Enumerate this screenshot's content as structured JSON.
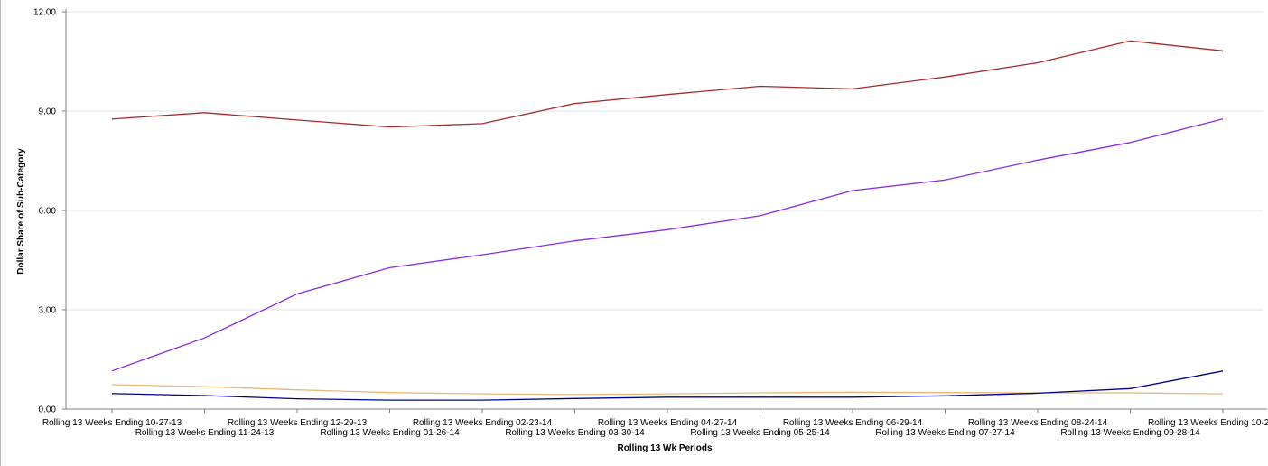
{
  "chart_data": {
    "type": "line",
    "title": "",
    "xlabel": "Rolling 13 Wk Periods",
    "ylabel": "Dollar Share of Sub-Category",
    "ylim": [
      0,
      12
    ],
    "yticks": [
      "0.00",
      "3.00",
      "6.00",
      "9.00",
      "12.00"
    ],
    "grid": "horizontal",
    "legend": "none",
    "categories": [
      "Rolling 13 Weeks Ending 10-27-13",
      "Rolling 13 Weeks Ending 11-24-13",
      "Rolling 13 Weeks Ending 12-29-13",
      "Rolling 13 Weeks Ending 01-26-14",
      "Rolling 13 Weeks Ending 02-23-14",
      "Rolling 13 Weeks Ending 03-30-14",
      "Rolling 13 Weeks Ending 04-27-14",
      "Rolling 13 Weeks Ending 05-25-14",
      "Rolling 13 Weeks Ending 06-29-14",
      "Rolling 13 Weeks Ending 07-27-14",
      "Rolling 13 Weeks Ending 08-24-14",
      "Rolling 13 Weeks Ending 09-28-14",
      "Rolling 13 Weeks Ending 10-2"
    ],
    "series": [
      {
        "color": "#a52a2a",
        "values": [
          8.76,
          8.95,
          8.73,
          8.52,
          8.62,
          9.23,
          9.5,
          9.75,
          9.67,
          10.03,
          10.46,
          11.12,
          10.82
        ]
      },
      {
        "color": "#8a2be2",
        "values": [
          1.15,
          2.15,
          3.48,
          4.27,
          4.66,
          5.08,
          5.42,
          5.84,
          6.6,
          6.92,
          7.52,
          8.05,
          8.76
        ]
      },
      {
        "color": "#e8b878",
        "values": [
          0.74,
          0.68,
          0.58,
          0.5,
          0.46,
          0.44,
          0.46,
          0.49,
          0.51,
          0.5,
          0.49,
          0.49,
          0.46
        ]
      },
      {
        "color": "#00008b",
        "values": [
          0.47,
          0.41,
          0.31,
          0.27,
          0.27,
          0.32,
          0.36,
          0.36,
          0.36,
          0.4,
          0.48,
          0.62,
          1.15
        ]
      }
    ],
    "colors": {
      "grid": "#d6e6ee",
      "axis": "#808080"
    }
  }
}
